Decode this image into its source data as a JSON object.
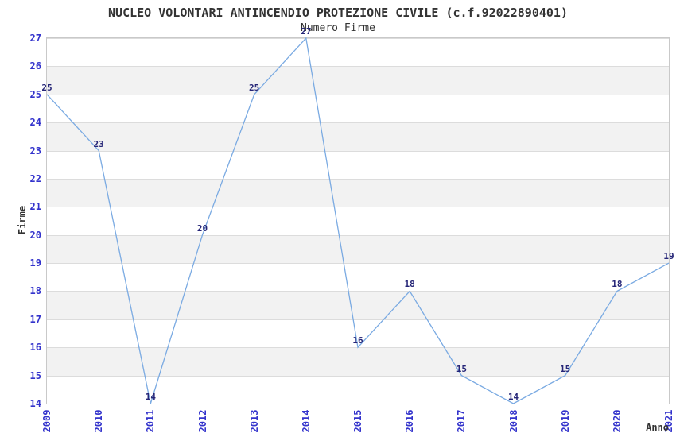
{
  "chart_data": {
    "type": "line",
    "title": "NUCLEO VOLONTARI ANTINCENDIO PROTEZIONE CIVILE (c.f.92022890401)",
    "subtitle": "Numero Firme",
    "xlabel": "Anno",
    "ylabel": "Firme",
    "categories": [
      "2009",
      "2010",
      "2011",
      "2012",
      "2013",
      "2014",
      "2015",
      "2016",
      "2017",
      "2018",
      "2019",
      "2020",
      "2021"
    ],
    "values": [
      25,
      23,
      14,
      20,
      25,
      27,
      16,
      18,
      15,
      14,
      15,
      18,
      19
    ],
    "ylim": [
      14,
      27
    ],
    "ytick_step": 1,
    "grid": true,
    "legend": "none",
    "colors": {
      "line": "#7aaae2",
      "band": "#f2f2f2",
      "gridline": "#dcdcdc",
      "plot_border": "#c9c9c9",
      "axis_tick_label": "#3333cc",
      "point_label": "#252577",
      "text": "#333333"
    }
  }
}
